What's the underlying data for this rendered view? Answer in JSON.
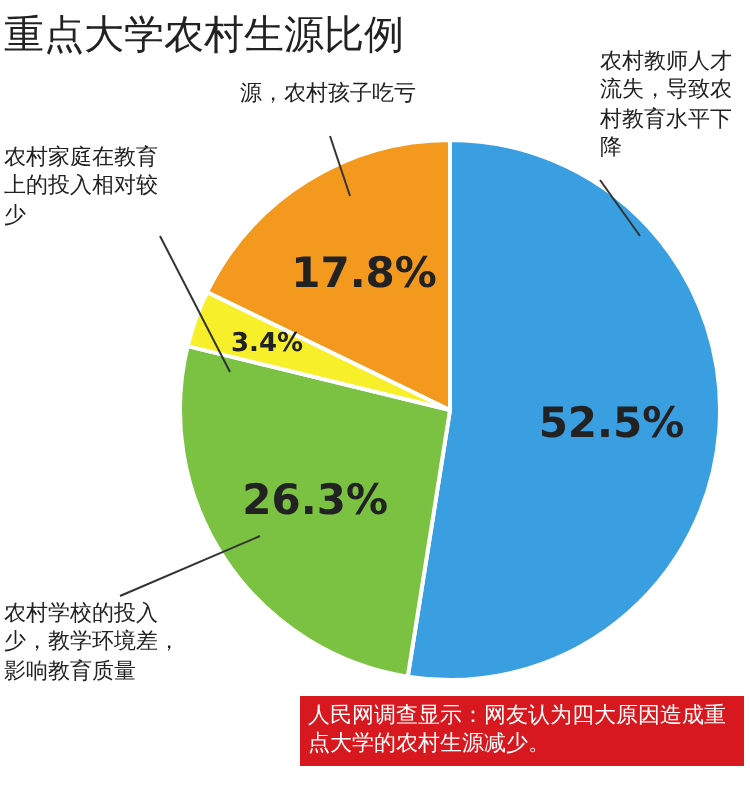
{
  "chart_data": {
    "type": "pie",
    "title": "重点大学农村生源比例",
    "categories": [
      null,
      null,
      null,
      null
    ],
    "values": [
      52.5,
      26.3,
      3.4,
      17.8
    ],
    "colors": [
      "#3a9fe0",
      "#7cc242",
      "#f7ef2a",
      "#f39a1e"
    ],
    "value_labels": [
      "52.5%",
      "26.3%",
      "3.4%",
      "17.8%"
    ],
    "annotations": [
      "农村教师人才流失，导致农村教育水平下降",
      "源，农村孩子吃亏",
      "农村家庭在教育上的投入相对较少",
      "农村学校的投入少，教学环境差，影响教育质量",
      "人民网调查显示：网友认为四大原因造成重点大学的农村生源减少。"
    ]
  }
}
